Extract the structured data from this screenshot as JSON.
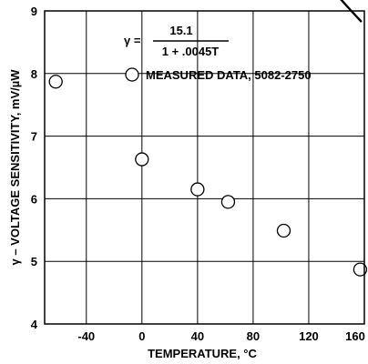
{
  "chart_data": {
    "type": "scatter",
    "xlabel": "TEMPERATURE, °C",
    "ylabel": "γ – VOLTAGE SENSITIVITY, mV/µW",
    "xlim": [
      -70,
      160
    ],
    "ylim": [
      4,
      9
    ],
    "x_ticks": [
      -40,
      0,
      40,
      80,
      120,
      160
    ],
    "y_ticks": [
      4,
      5,
      6,
      7,
      8,
      9
    ],
    "grid": true,
    "legend_position": "top-right",
    "formula": {
      "lhs": "γ =",
      "numerator": "15.1",
      "denominator": "1 + .0045T"
    },
    "series": [
      {
        "name": "MEASURED DATA, 5082-2750",
        "marker": "open-circle",
        "x": [
          -62,
          0,
          40,
          62,
          102,
          157
        ],
        "y": [
          7.87,
          6.63,
          6.15,
          5.95,
          5.49,
          4.87
        ]
      }
    ],
    "fit": {
      "kind": "curve",
      "equation": "15.1 / (1 + 0.0045 T)",
      "x_range": [
        -65,
        158
      ]
    }
  },
  "colors": {
    "ink": "#000000",
    "background": "#ffffff"
  }
}
